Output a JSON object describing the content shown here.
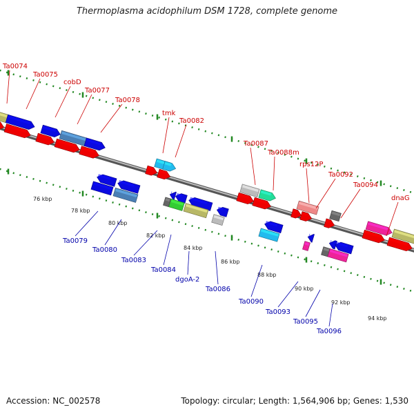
{
  "title": "Thermoplasma acidophilum DSM 1728, complete genome",
  "accession": "Accession: NC_002578",
  "summary": "Topology: circular; Length: 1,564,906 bp; Genes: 1,530",
  "colors": {
    "backbone": "#777777",
    "tick": "#228822",
    "label_top": "#cc0000",
    "label_bottom": "#0000aa"
  },
  "scale_labels": [
    "76 kbp",
    "78 kbp",
    "80 kbp",
    "82 kbp",
    "84 kbp",
    "86 kbp",
    "88 kbp",
    "90 kbp",
    "92 kbp",
    "94 kbp"
  ],
  "top_labels": [
    "Ta0074",
    "Ta0075",
    "cobD",
    "Ta0077",
    "Ta0078",
    "tmk",
    "Ta0082",
    "Ta0087",
    "Ta0088m",
    "rps12P",
    "Ta0092",
    "Ta0094",
    "dnaG"
  ],
  "bottom_labels": [
    "Ta0079",
    "Ta0080",
    "Ta0083",
    "Ta0084",
    "dgoA-2",
    "Ta0086",
    "Ta0090",
    "Ta0093",
    "Ta0095",
    "Ta0096"
  ]
}
